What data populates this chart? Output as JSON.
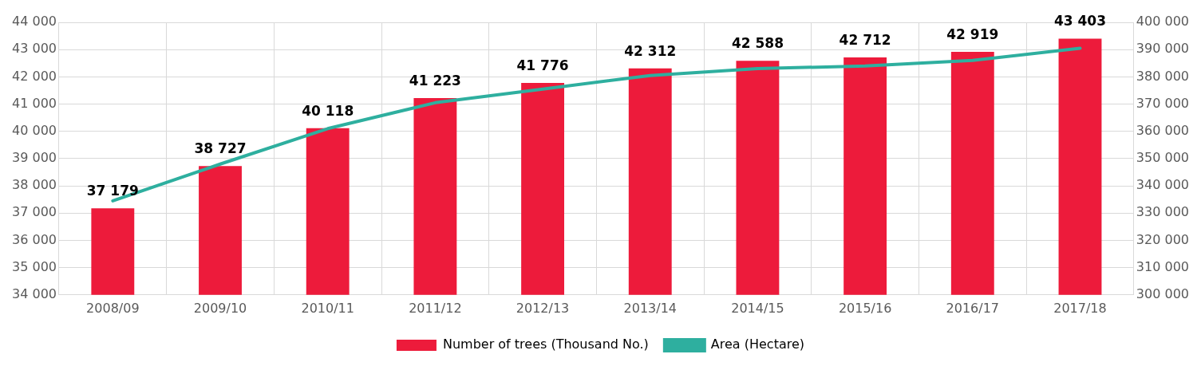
{
  "chart_data": {
    "type": "bar",
    "categories": [
      "2008/09",
      "2009/10",
      "2010/11",
      "2011/12",
      "2012/13",
      "2013/14",
      "2014/15",
      "2015/16",
      "2016/17",
      "2017/18"
    ],
    "series": [
      {
        "name": "Number of trees (Thousand No.)",
        "color": "#ed1b3b",
        "values": [
          37179,
          38727,
          40118,
          41223,
          41776,
          42312,
          42588,
          42712,
          42919,
          43403
        ],
        "value_labels": [
          "37 179",
          "38 727",
          "40 118",
          "41 223",
          "41 776",
          "42 312",
          "42 588",
          "42 712",
          "42 919",
          "43 403"
        ]
      },
      {
        "name": "Area (Hectare)",
        "type": "line",
        "axis": "y2",
        "color": "#2eaf9f",
        "values": [
          334500,
          348000,
          361000,
          370500,
          375500,
          380500,
          383000,
          384000,
          386000,
          390500
        ]
      }
    ],
    "ylim": [
      34000,
      44000
    ],
    "yticks": [
      {
        "value": 34000,
        "label": "34 000"
      },
      {
        "value": 35000,
        "label": "35 000"
      },
      {
        "value": 36000,
        "label": "36 000"
      },
      {
        "value": 37000,
        "label": "37 000"
      },
      {
        "value": 38000,
        "label": "38 000"
      },
      {
        "value": 39000,
        "label": "39 000"
      },
      {
        "value": 40000,
        "label": "40 000"
      },
      {
        "value": 41000,
        "label": "41 000"
      },
      {
        "value": 42000,
        "label": "42 000"
      },
      {
        "value": 43000,
        "label": "43 000"
      },
      {
        "value": 44000,
        "label": "44 000"
      }
    ],
    "y2lim": [
      300000,
      400000
    ],
    "y2ticks": [
      {
        "value": 300000,
        "label": "300 000"
      },
      {
        "value": 310000,
        "label": "310 000"
      },
      {
        "value": 320000,
        "label": "320 000"
      },
      {
        "value": 330000,
        "label": "330 000"
      },
      {
        "value": 340000,
        "label": "340 000"
      },
      {
        "value": 350000,
        "label": "350 000"
      },
      {
        "value": 360000,
        "label": "360 000"
      },
      {
        "value": 370000,
        "label": "370 000"
      },
      {
        "value": 380000,
        "label": "380 000"
      },
      {
        "value": 390000,
        "label": "390 000"
      },
      {
        "value": 400000,
        "label": "400 000"
      }
    ],
    "grid": true,
    "legend": "bottom",
    "marker": "none",
    "line_style": "solid"
  }
}
